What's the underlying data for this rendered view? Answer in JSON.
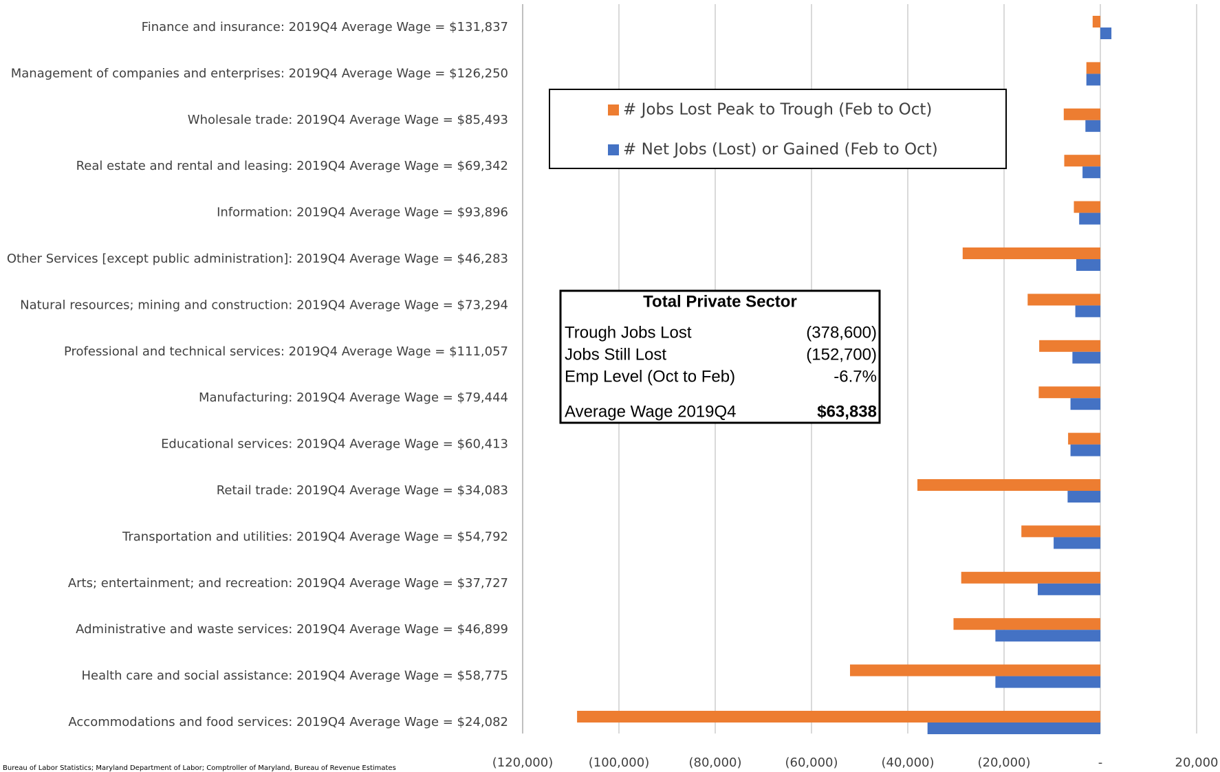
{
  "chart_data": {
    "type": "hbar",
    "categories": [
      "Finance and insurance: 2019Q4 Average Wage = $131,837",
      "Management of companies and enterprises: 2019Q4 Average Wage = $126,250",
      "Wholesale trade: 2019Q4 Average Wage = $85,493",
      "Real estate and rental and leasing: 2019Q4 Average Wage = $69,342",
      "Information: 2019Q4 Average Wage = $93,896",
      "Other Services [except public administration]: 2019Q4 Average Wage = $46,283",
      "Natural resources; mining and construction: 2019Q4 Average Wage = $73,294",
      "Professional and technical services: 2019Q4 Average Wage = $111,057",
      "Manufacturing: 2019Q4 Average Wage = $79,444",
      "Educational services: 2019Q4 Average Wage = $60,413",
      "Retail trade: 2019Q4 Average Wage = $34,083",
      "Transportation and utilities: 2019Q4 Average Wage = $54,792",
      "Arts; entertainment; and recreation: 2019Q4 Average Wage = $37,727",
      "Administrative and waste services: 2019Q4 Average Wage = $46,899",
      "Health care and social assistance: 2019Q4 Average Wage = $58,775",
      "Accommodations and food services: 2019Q4 Average Wage = $24,082"
    ],
    "series": [
      {
        "name": "# Jobs Lost Peak to Trough (Feb to Oct)",
        "color": "#ed7d31",
        "values": [
          -1600,
          -2900,
          -7600,
          -7500,
          -5500,
          -28600,
          -15100,
          -12700,
          -12800,
          -6700,
          -38000,
          -16400,
          -28900,
          -30500,
          -52000,
          -108700
        ]
      },
      {
        "name": "# Net Jobs (Lost) or Gained (Feb to Oct)",
        "color": "#4472c4",
        "values": [
          2300,
          -2900,
          -3100,
          -3700,
          -4400,
          -5000,
          -5200,
          -5800,
          -6200,
          -6200,
          -6800,
          -9700,
          -13000,
          -21800,
          -21800,
          -35900
        ]
      }
    ],
    "xlim": [
      -120000,
      20000
    ],
    "xticks": [
      {
        "value": -120000,
        "label": "(120,000)"
      },
      {
        "value": -100000,
        "label": "(100,000)"
      },
      {
        "value": -80000,
        "label": "(80,000)"
      },
      {
        "value": -60000,
        "label": "(60,000)"
      },
      {
        "value": -40000,
        "label": "(40,000)"
      },
      {
        "value": -20000,
        "label": "(20,000)"
      },
      {
        "value": 0,
        "label": "-"
      },
      {
        "value": 20000,
        "label": "20,000"
      }
    ],
    "grid": true,
    "summary": {
      "title": "Total Private Sector",
      "rows": [
        [
          "Trough Jobs Lost",
          "(378,600)"
        ],
        [
          "Jobs Still Lost",
          "(152,700)"
        ],
        [
          "Emp Level (Oct to Feb)",
          "-6.7%"
        ],
        [
          "Average Wage 2019Q4",
          "$63,838"
        ]
      ]
    },
    "source": "Bureau of Labor Statistics; Maryland Department of Labor; Comptroller of Maryland, Bureau of Revenue Estimates"
  }
}
